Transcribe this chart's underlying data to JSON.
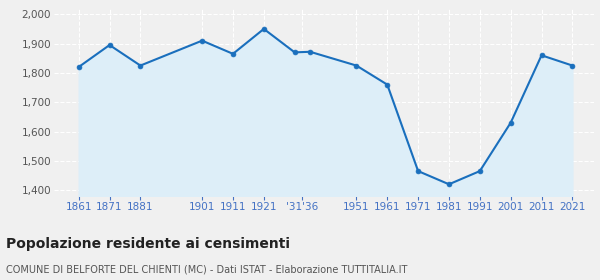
{
  "years": [
    1861,
    1871,
    1881,
    1901,
    1911,
    1921,
    1931,
    1936,
    1951,
    1961,
    1971,
    1981,
    1991,
    2001,
    2011,
    2021
  ],
  "values": [
    1820,
    1895,
    1825,
    1910,
    1865,
    1950,
    1870,
    1872,
    1825,
    1760,
    1465,
    1420,
    1465,
    1630,
    1860,
    1825
  ],
  "line_color": "#1a6fbd",
  "fill_color": "#ddeef8",
  "marker_color": "#1a6fbd",
  "bg_color": "#f0f0f0",
  "grid_color": "#ffffff",
  "ylim": [
    1380,
    2020
  ],
  "yticks": [
    1400,
    1500,
    1600,
    1700,
    1800,
    1900,
    2000
  ],
  "xlim_min": 1853,
  "xlim_max": 2028,
  "tick_positions": [
    1861,
    1871,
    1881,
    1901,
    1911,
    1921,
    1933.5,
    1951,
    1961,
    1971,
    1981,
    1991,
    2001,
    2011,
    2021
  ],
  "tick_labels": [
    "1861",
    "1871",
    "1881",
    "1901",
    "1911",
    "1921",
    "‱36",
    "1951",
    "1961",
    "1971",
    "1981",
    "1991",
    "2001",
    "2011",
    "2021"
  ],
  "title": "Popolazione residente ai censimenti",
  "subtitle": "COMUNE DI BELFORTE DEL CHIENTI (MC) - Dati ISTAT - Elaborazione TUTTITALIA.IT",
  "title_fontsize": 10,
  "subtitle_fontsize": 7,
  "tick_label_fontsize": 7.5,
  "ytick_fontsize": 7.5
}
